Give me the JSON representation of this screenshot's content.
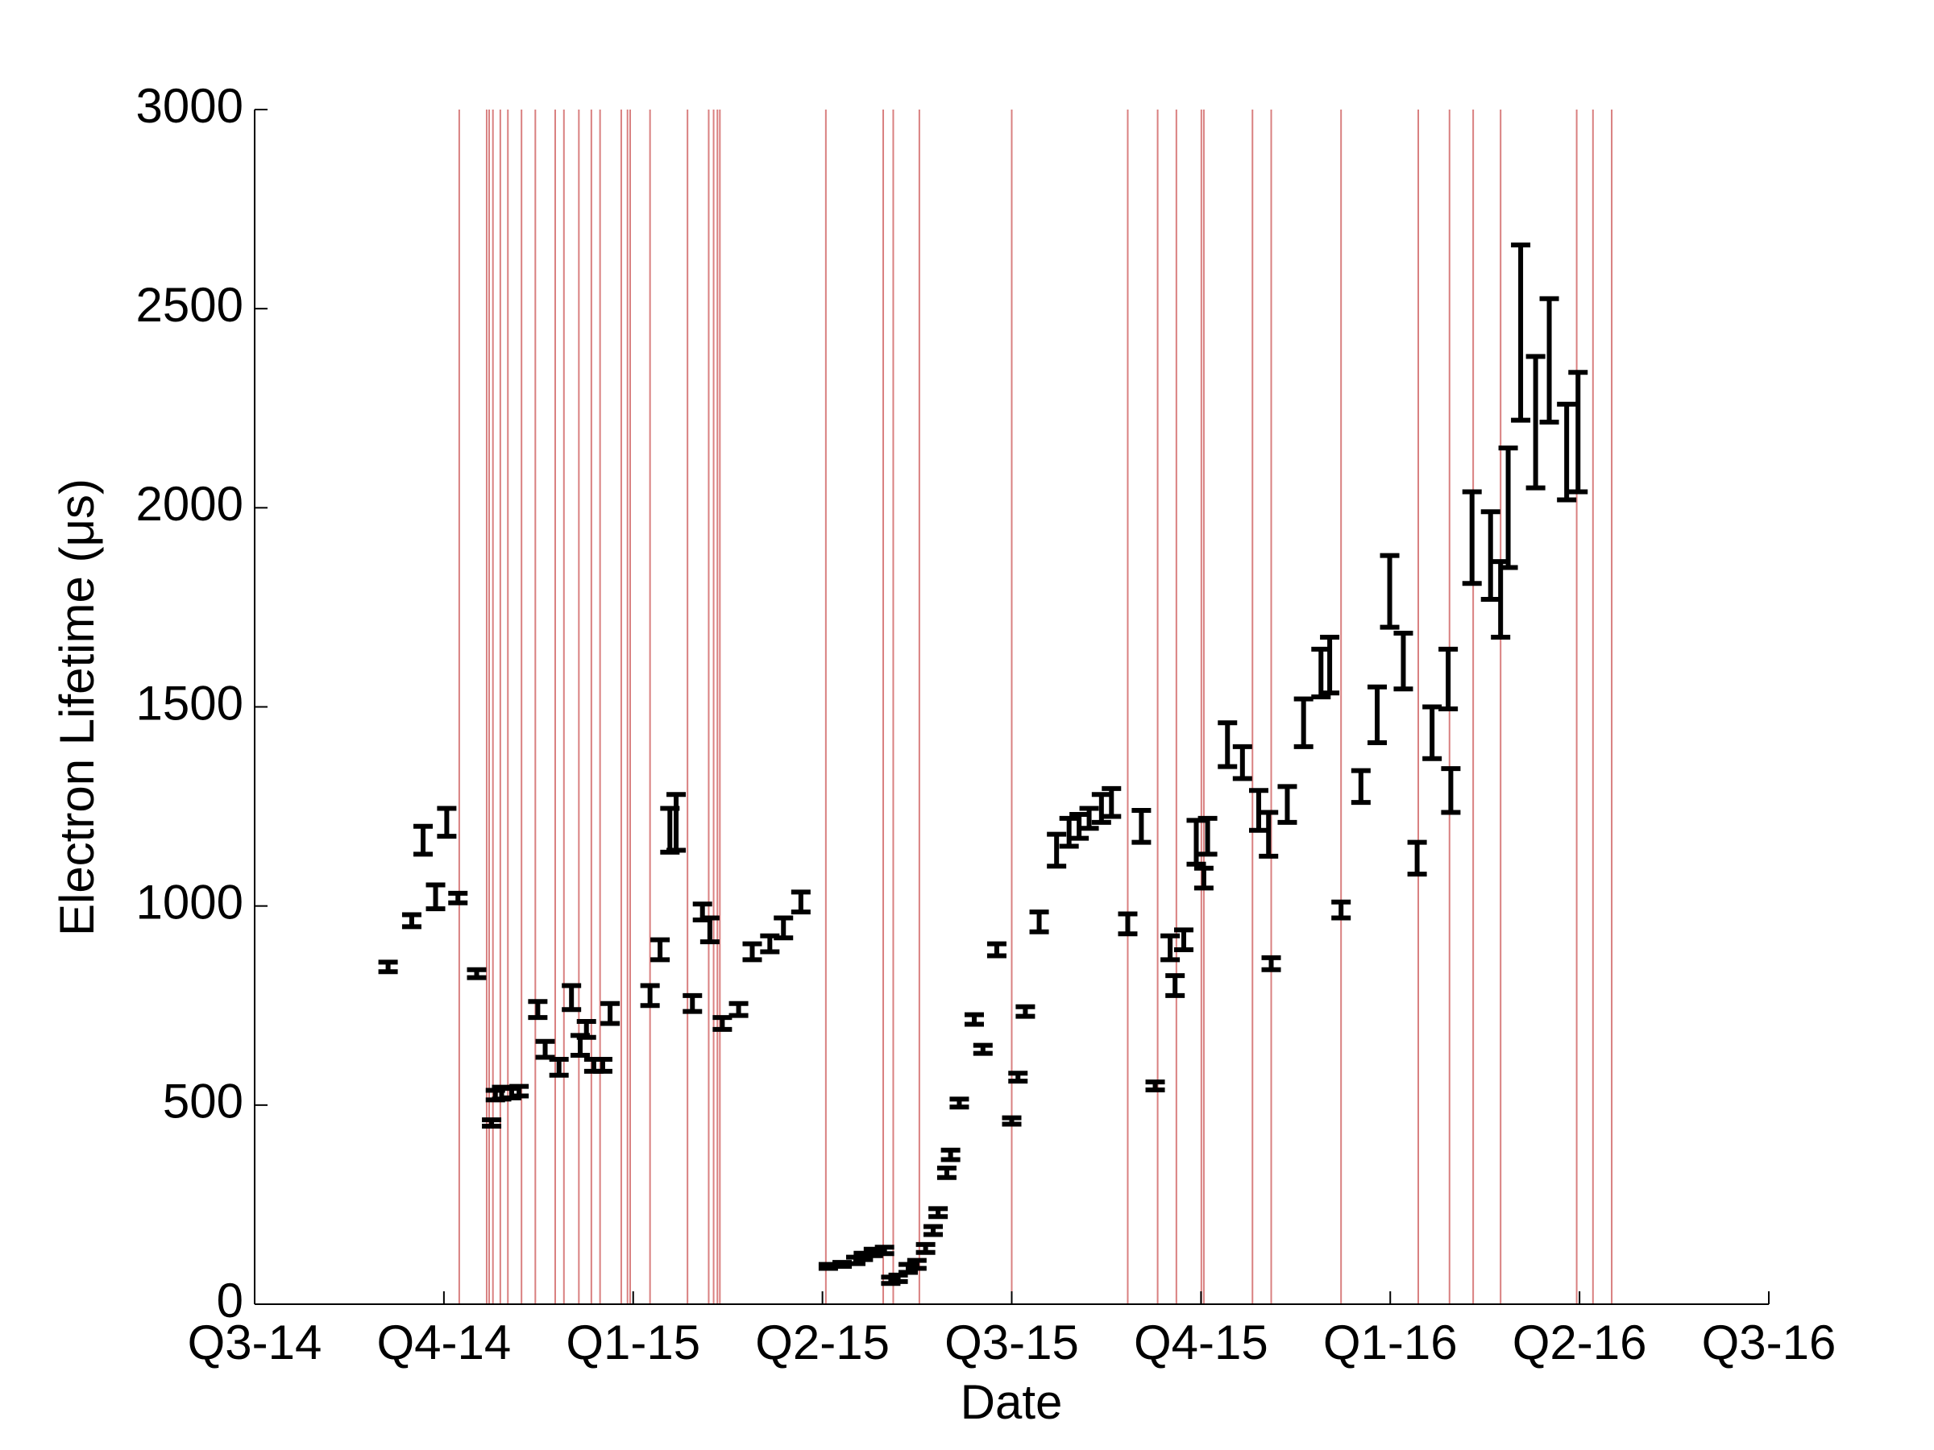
{
  "chart_data": {
    "type": "errorbar",
    "xlabel": "Date",
    "ylabel": "Electron Lifetime (μs)",
    "xlim": [
      0,
      8
    ],
    "xticks": [
      {
        "value": 0,
        "label": "Q3-14"
      },
      {
        "value": 1,
        "label": "Q4-14"
      },
      {
        "value": 2,
        "label": "Q1-15"
      },
      {
        "value": 3,
        "label": "Q2-15"
      },
      {
        "value": 4,
        "label": "Q3-15"
      },
      {
        "value": 5,
        "label": "Q4-15"
      },
      {
        "value": 6,
        "label": "Q1-16"
      },
      {
        "value": 7,
        "label": "Q2-16"
      },
      {
        "value": 8,
        "label": "Q3-16"
      }
    ],
    "ylim": [
      0,
      3000
    ],
    "yticks": [
      0,
      500,
      1000,
      1500,
      2000,
      2500,
      3000
    ],
    "x": [
      0.705,
      0.83,
      0.89,
      0.956,
      1.015,
      1.074,
      1.173,
      1.252,
      1.272,
      1.305,
      1.358,
      1.397,
      1.496,
      1.535,
      1.608,
      1.674,
      1.72,
      1.753,
      1.792,
      1.839,
      1.878,
      2.089,
      2.142,
      2.194,
      2.227,
      2.313,
      2.366,
      2.405,
      2.471,
      2.557,
      2.629,
      2.722,
      2.794,
      2.886,
      3.031,
      3.104,
      3.176,
      3.216,
      3.269,
      3.328,
      3.361,
      3.4,
      3.453,
      3.499,
      3.545,
      3.585,
      3.611,
      3.657,
      3.677,
      3.723,
      3.802,
      3.848,
      3.921,
      4.0,
      4.033,
      4.072,
      4.145,
      4.237,
      4.303,
      4.356,
      4.409,
      4.474,
      4.527,
      4.613,
      4.685,
      4.758,
      4.837,
      4.863,
      4.909,
      4.975,
      5.015,
      5.035,
      5.14,
      5.219,
      5.305,
      5.357,
      5.371,
      5.456,
      5.542,
      5.634,
      5.68,
      5.74,
      5.845,
      5.931,
      5.997,
      6.069,
      6.142,
      6.221,
      6.306,
      6.32,
      6.432,
      6.53,
      6.583,
      6.623,
      6.689,
      6.768,
      6.84,
      6.932,
      6.992
    ],
    "series": [
      {
        "color": "#000000",
        "values": [
          847,
          963,
          1165,
          1023,
          1210,
          1020,
          830,
          455,
          525,
          530,
          530,
          535,
          740,
          640,
          595,
          770,
          650,
          690,
          600,
          600,
          730,
          775,
          890,
          1190,
          1210,
          755,
          985,
          940,
          705,
          740,
          885,
          905,
          945,
          1010,
          95,
          100,
          110,
          120,
          130,
          135,
          60,
          65,
          90,
          100,
          140,
          185,
          230,
          330,
          375,
          505,
          715,
          640,
          890,
          460,
          570,
          735,
          960,
          1140,
          1185,
          1200,
          1220,
          1245,
          1260,
          955,
          1200,
          548,
          895,
          800,
          915,
          1160,
          1070,
          1175,
          1405,
          1360,
          1240,
          1180,
          855,
          1255,
          1460,
          1585,
          1605,
          990,
          1300,
          1480,
          1790,
          1615,
          1120,
          1435,
          1570,
          1290,
          1925,
          1880,
          1770,
          2000,
          2440,
          2215,
          2370,
          2140,
          2190
        ],
        "errors": [
          12,
          15,
          35,
          30,
          35,
          12,
          10,
          8,
          12,
          15,
          12,
          12,
          20,
          20,
          20,
          30,
          25,
          20,
          15,
          15,
          25,
          25,
          25,
          55,
          70,
          20,
          20,
          30,
          15,
          15,
          20,
          20,
          25,
          25,
          5,
          5,
          8,
          8,
          8,
          8,
          8,
          8,
          10,
          10,
          10,
          10,
          10,
          12,
          12,
          10,
          12,
          10,
          15,
          8,
          10,
          12,
          25,
          40,
          35,
          30,
          25,
          35,
          35,
          25,
          40,
          10,
          30,
          25,
          25,
          55,
          25,
          45,
          55,
          40,
          50,
          55,
          15,
          45,
          60,
          60,
          70,
          20,
          40,
          70,
          90,
          70,
          40,
          65,
          75,
          55,
          115,
          110,
          95,
          150,
          220,
          165,
          155,
          120,
          150
        ]
      }
    ],
    "event_lines": {
      "color": "#d98080",
      "x": [
        1.081,
        1.226,
        1.239,
        1.259,
        1.298,
        1.338,
        1.41,
        1.483,
        1.588,
        1.634,
        1.713,
        1.779,
        1.825,
        1.937,
        1.97,
        1.984,
        2.089,
        2.287,
        2.399,
        2.425,
        2.445,
        2.458,
        3.018,
        3.321,
        3.374,
        3.512,
        4.0,
        4.613,
        4.771,
        4.87,
        5.002,
        5.015,
        5.272,
        5.371,
        5.74,
        6.148,
        6.313,
        6.438,
        6.583,
        6.985,
        7.071,
        7.17
      ]
    }
  }
}
